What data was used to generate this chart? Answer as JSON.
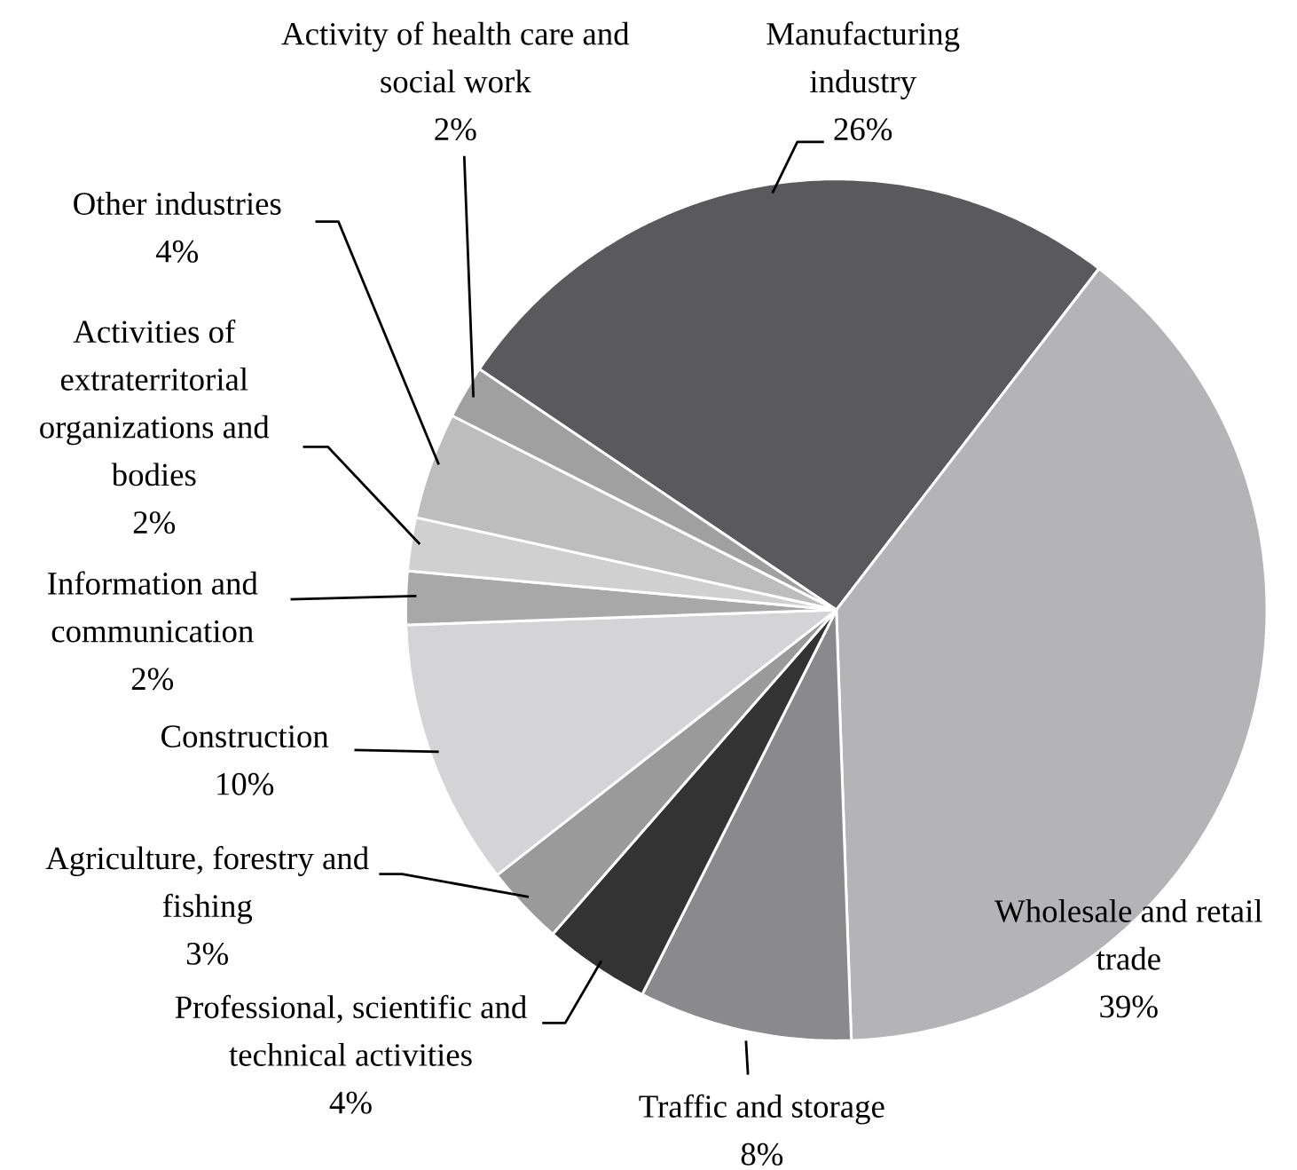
{
  "chart_data": {
    "type": "pie",
    "categories": [
      "Manufacturing industry",
      "Wholesale and retail trade",
      "Traffic and storage",
      "Professional, scientific and technical activities",
      "Agriculture, forestry and fishing",
      "Construction",
      "Information and communication",
      "Activities of extraterritorial organizations and bodies",
      "Other industries",
      "Activity of health care and social work"
    ],
    "values": [
      26,
      39,
      8,
      4,
      3,
      10,
      2,
      2,
      4,
      2
    ],
    "value_labels": [
      "26%",
      "39%",
      "8%",
      "4%",
      "3%",
      "10%",
      "2%",
      "2%",
      "4%",
      "2%"
    ],
    "colors": [
      "#5a5a5c",
      "#b4b4b6",
      "#8a8a8c",
      "#333333",
      "#9a9a9a",
      "#d4d4d6",
      "#a8a8a8",
      "#d0d0d0",
      "#bdbdbd",
      "#a0a0a0"
    ]
  }
}
